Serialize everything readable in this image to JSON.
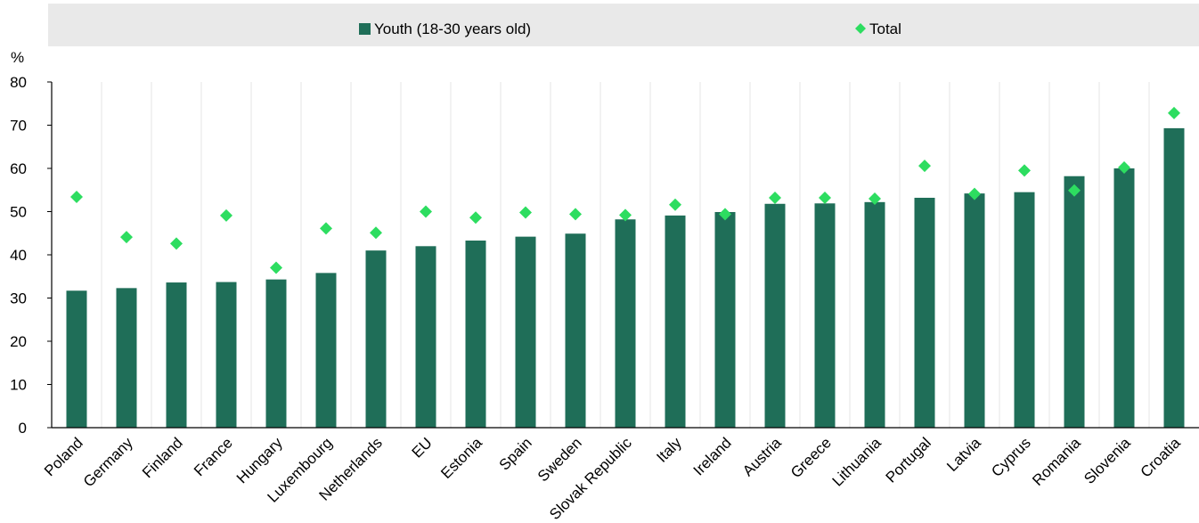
{
  "chart_data": {
    "type": "bar",
    "ylabel": "%",
    "ylim": [
      0,
      80
    ],
    "yticks": [
      0,
      10,
      20,
      30,
      40,
      50,
      60,
      70,
      80
    ],
    "grid": "vertical-light",
    "legend_position": "top",
    "categories": [
      "Poland",
      "Germany",
      "Finland",
      "France",
      "Hungary",
      "Luxembourg",
      "Netherlands",
      "EU",
      "Estonia",
      "Spain",
      "Sweden",
      "Slovak Republic",
      "Italy",
      "Ireland",
      "Austria",
      "Greece",
      "Lithuania",
      "Portugal",
      "Latvia",
      "Cyprus",
      "Romania",
      "Slovenia",
      "Croatia"
    ],
    "series": [
      {
        "name": "Youth (18-30 years old)",
        "kind": "bar",
        "color": "#1f6e58",
        "values": [
          31.7,
          32.3,
          33.6,
          33.7,
          34.3,
          35.8,
          41.0,
          42.0,
          43.3,
          44.2,
          44.9,
          48.2,
          49.1,
          49.9,
          51.8,
          51.9,
          52.2,
          53.2,
          54.2,
          54.5,
          58.2,
          60.0,
          69.3
        ]
      },
      {
        "name": "Total",
        "kind": "marker",
        "color": "#2ddd60",
        "values": [
          53.4,
          44.1,
          42.6,
          49.1,
          37.0,
          46.1,
          45.1,
          50.0,
          48.6,
          49.8,
          49.4,
          49.2,
          51.6,
          49.4,
          53.2,
          53.2,
          53.0,
          60.6,
          54.1,
          59.5,
          54.9,
          60.2,
          72.8
        ]
      }
    ]
  }
}
